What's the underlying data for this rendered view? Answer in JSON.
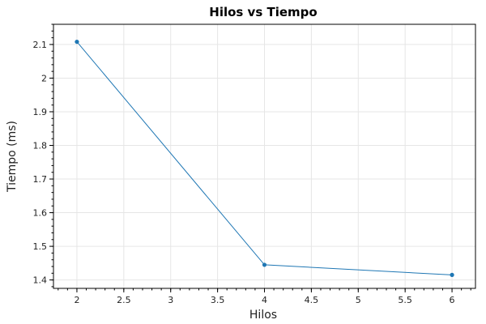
{
  "chart_data": {
    "type": "line",
    "title": "Hilos vs Tiempo",
    "xlabel": "Hilos",
    "ylabel": "Tiempo (ms)",
    "x": [
      2,
      4,
      6
    ],
    "series": [
      {
        "values": [
          2.108,
          1.445,
          1.415
        ],
        "color": "#1f77b4"
      }
    ],
    "xlim": [
      1.75,
      6.25
    ],
    "ylim": [
      1.375,
      2.16
    ],
    "xticks": [
      2,
      2.5,
      3,
      3.5,
      4,
      4.5,
      5,
      5.5,
      6
    ],
    "xtick_labels": [
      "2",
      "2.5",
      "3",
      "3.5",
      "4",
      "4.5",
      "5",
      "5.5",
      "6"
    ],
    "yticks": [
      1.4,
      1.5,
      1.6,
      1.7,
      1.8,
      1.9,
      2,
      2.1
    ],
    "ytick_labels": [
      "1.4",
      "1.5",
      "1.6",
      "1.7",
      "1.8",
      "1.9",
      "2",
      "2.1"
    ],
    "grid": true,
    "legend": "none"
  }
}
